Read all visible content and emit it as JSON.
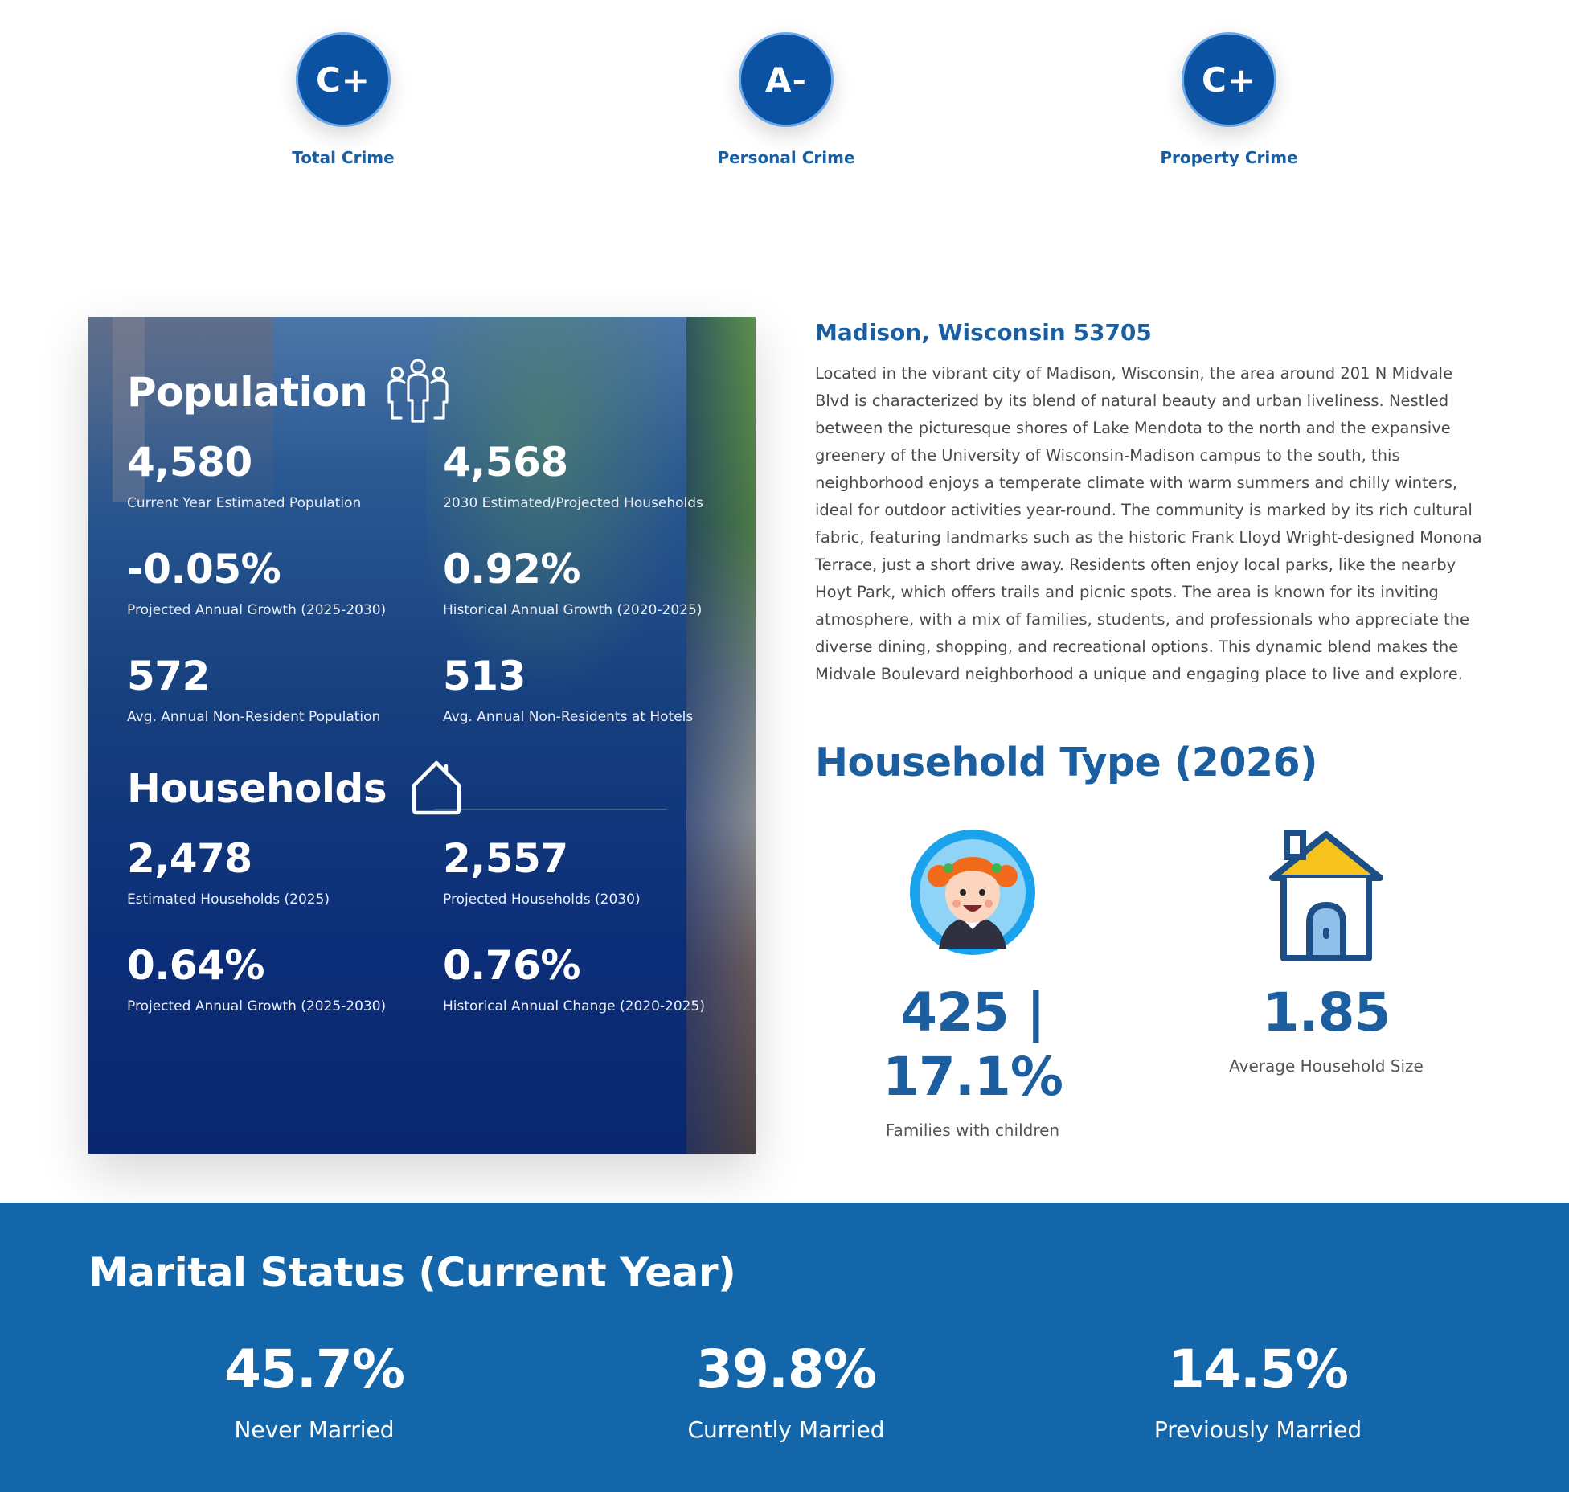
{
  "crime_grades": [
    {
      "grade": "C+",
      "label": "Total Crime"
    },
    {
      "grade": "A-",
      "label": "Personal Crime"
    },
    {
      "grade": "C+",
      "label": "Property Crime"
    }
  ],
  "population": {
    "title": "Population",
    "icon": "people-group-icon",
    "stats": [
      {
        "value": "4,580",
        "label": "Current Year Estimated Population"
      },
      {
        "value": "4,568",
        "label": "2030 Estimated/Projected Households"
      },
      {
        "value": "-0.05%",
        "label": "Projected Annual Growth (2025-2030)"
      },
      {
        "value": "0.92%",
        "label": "Historical Annual Growth (2020-2025)"
      },
      {
        "value": "572",
        "label": "Avg. Annual Non-Resident Population"
      },
      {
        "value": "513",
        "label": "Avg. Annual Non-Residents at Hotels"
      }
    ]
  },
  "households": {
    "title": "Households",
    "icon": "house-outline-icon",
    "stats": [
      {
        "value": "2,478",
        "label": "Estimated Households (2025)"
      },
      {
        "value": "2,557",
        "label": "Projected Households (2030)"
      },
      {
        "value": "0.64%",
        "label": "Projected Annual Growth (2025-2030)"
      },
      {
        "value": "0.76%",
        "label": "Historical Annual Change (2020-2025)"
      }
    ]
  },
  "location": {
    "title": "Madison, Wisconsin 53705",
    "description": "Located in the vibrant city of Madison, Wisconsin, the area around 201 N Midvale Blvd is characterized by its blend of natural beauty and urban liveliness. Nestled between the picturesque shores of Lake Mendota to the north and the expansive greenery of the University of Wisconsin-Madison campus to the south, this neighborhood enjoys a temperate climate with warm summers and chilly winters, ideal for outdoor activities year-round. The community is marked by its rich cultural fabric, featuring landmarks such as the historic Frank Lloyd Wright-designed Monona Terrace, just a short drive away. Residents often enjoy local parks, like the nearby Hoyt Park, which offers trails and picnic spots. The area is known for its inviting atmosphere, with a mix of families, students, and professionals who appreciate the diverse dining, shopping, and recreational options. This dynamic blend makes the Midvale Boulevard neighborhood a unique and engaging place to live and explore."
  },
  "household_type": {
    "title": "Household Type (2026)",
    "items": [
      {
        "value": "425 | 17.1%",
        "label": "Families with children",
        "icon": "child-face-icon"
      },
      {
        "value": "1.85",
        "label": "Average Household Size",
        "icon": "house-icon"
      }
    ]
  },
  "marital": {
    "title": "Marital Status (Current Year)",
    "items": [
      {
        "value": "45.7%",
        "label": "Never Married"
      },
      {
        "value": "39.8%",
        "label": "Currently Married"
      },
      {
        "value": "14.5%",
        "label": "Previously Married"
      }
    ]
  },
  "colors": {
    "brand_blue": "#1c5fa0",
    "grade_circle": "#0b52a3",
    "marital_band": "#1466aa",
    "house_roof": "#f6c21c"
  }
}
